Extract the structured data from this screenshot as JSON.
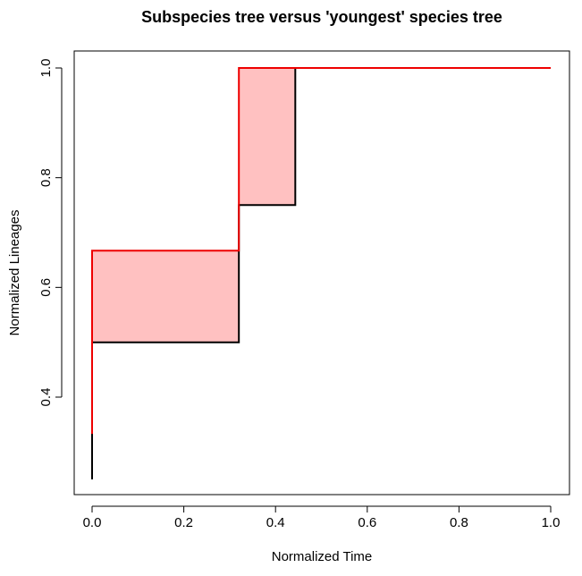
{
  "chart_data": {
    "type": "line",
    "title": "Subspecies tree versus 'youngest' species tree",
    "xlabel": "Normalized Time",
    "ylabel": "Normalized Lineages",
    "xlim": [
      0,
      1
    ],
    "ylim": [
      0.25,
      1.0
    ],
    "x_ticks": [
      "0.0",
      "0.2",
      "0.4",
      "0.6",
      "0.8",
      "1.0"
    ],
    "y_ticks": [
      "0.4",
      "0.6",
      "0.8",
      "1.0"
    ],
    "grid": false,
    "legend": "none",
    "step": true,
    "series": [
      {
        "color": "#000000",
        "x": [
          0.0,
          0.0,
          0.32,
          0.32,
          0.443,
          0.443,
          1.0
        ],
        "y": [
          0.25,
          0.5,
          0.5,
          0.75,
          0.75,
          1.0,
          1.0
        ]
      },
      {
        "color": "#ee0000",
        "x": [
          0.0,
          0.0,
          0.32,
          0.32,
          1.0
        ],
        "y": [
          0.333,
          0.667,
          0.667,
          1.0,
          1.0
        ]
      }
    ],
    "fill_between": {
      "color": "#ffc1c1",
      "note": ""
    }
  }
}
